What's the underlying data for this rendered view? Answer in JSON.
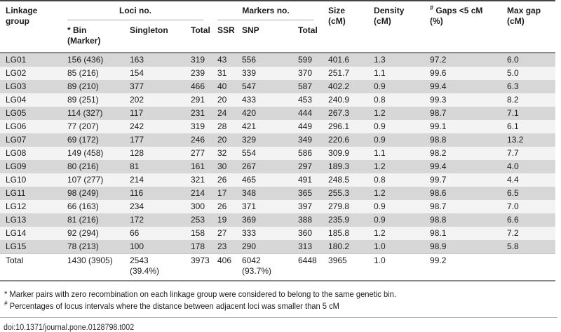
{
  "table": {
    "header": {
      "linkage_group": "Linkage group",
      "loci_group": "Loci no.",
      "markers_group": "Markers no.",
      "bin": "* Bin (Marker)",
      "singleton": "Singleton",
      "loci_total": "Total",
      "ssr": "SSR",
      "snp": "SNP",
      "markers_total": "Total",
      "size": "Size (cM)",
      "density": "Density (cM)",
      "gaps_sup": "#",
      "gaps": "Gaps <5 cM (%)",
      "max_gap": "Max gap (cM)"
    },
    "rows": [
      [
        "LG01",
        "156 (436)",
        "163",
        "319",
        "43",
        "556",
        "599",
        "401.6",
        "1.3",
        "97.2",
        "6.0"
      ],
      [
        "LG02",
        "85 (216)",
        "154",
        "239",
        "31",
        "339",
        "370",
        "251.7",
        "1.1",
        "99.6",
        "5.0"
      ],
      [
        "LG03",
        "89 (210)",
        "377",
        "466",
        "40",
        "547",
        "587",
        "402.2",
        "0.9",
        "99.4",
        "6.3"
      ],
      [
        "LG04",
        "89 (251)",
        "202",
        "291",
        "20",
        "433",
        "453",
        "240.9",
        "0.8",
        "99.3",
        "8.2"
      ],
      [
        "LG05",
        "114 (327)",
        "117",
        "231",
        "24",
        "420",
        "444",
        "267.3",
        "1.2",
        "98.7",
        "7.1"
      ],
      [
        "LG06",
        "77 (207)",
        "242",
        "319",
        "28",
        "421",
        "449",
        "296.1",
        "0.9",
        "99.1",
        "6.1"
      ],
      [
        "LG07",
        "69 (172)",
        "177",
        "246",
        "20",
        "329",
        "349",
        "220.6",
        "0.9",
        "98.8",
        "13.2"
      ],
      [
        "LG08",
        "149 (458)",
        "128",
        "277",
        "32",
        "554",
        "586",
        "309.9",
        "1.1",
        "98.2",
        "7.7"
      ],
      [
        "LG09",
        "80 (216)",
        "81",
        "161",
        "30",
        "267",
        "297",
        "189.3",
        "1.2",
        "99.4",
        "4.0"
      ],
      [
        "LG10",
        "107 (277)",
        "214",
        "321",
        "26",
        "465",
        "491",
        "248.5",
        "0.8",
        "99.7",
        "4.4"
      ],
      [
        "LG11",
        "98 (249)",
        "116",
        "214",
        "17",
        "348",
        "365",
        "255.3",
        "1.2",
        "98.6",
        "6.5"
      ],
      [
        "LG12",
        "66 (163)",
        "234",
        "300",
        "26",
        "371",
        "397",
        "279.8",
        "0.9",
        "98.7",
        "7.0"
      ],
      [
        "LG13",
        "81 (216)",
        "172",
        "253",
        "19",
        "369",
        "388",
        "235.9",
        "0.9",
        "98.8",
        "6.6"
      ],
      [
        "LG14",
        "92 (294)",
        "66",
        "158",
        "27",
        "333",
        "360",
        "185.8",
        "1.2",
        "98.1",
        "7.2"
      ],
      [
        "LG15",
        "78 (213)",
        "100",
        "178",
        "23",
        "290",
        "313",
        "180.2",
        "1.0",
        "98.9",
        "5.8"
      ],
      [
        "Total",
        "1430 (3905)",
        "2543 (39.4%)",
        "3973",
        "406",
        "6042 (93.7%)",
        "6448",
        "3965",
        "1.0",
        "99.2",
        ""
      ]
    ]
  },
  "footnotes": {
    "note1": "* Marker pairs with zero recombination on each linkage group were considered to belong to the same genetic bin.",
    "note2_sup": "#",
    "note2": "Percentages of locus intervals where the distance between adjacent loci was smaller than 5 cM",
    "doi": "doi:10.1371/journal.pone.0128798.t002"
  },
  "colors": {
    "stripe_odd": "#d7d7d8",
    "stripe_even": "#f3f3f4",
    "rule_dark": "#454545",
    "rule_mid": "#8a8a8b",
    "rule_light": "#ababac",
    "text": "#1c1c1c"
  }
}
